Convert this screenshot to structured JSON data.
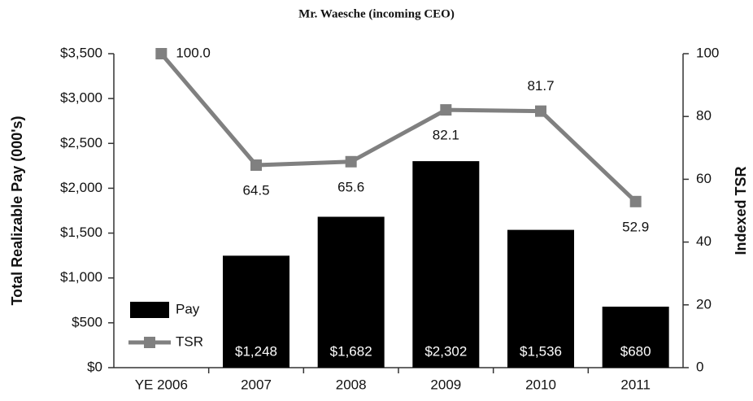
{
  "chart_data": {
    "type": "bar_line",
    "title": "Mr. Waesche (incoming CEO)",
    "y_label": "Total Realizable Pay (000's)",
    "y2_label": "Indexed TSR",
    "categories": [
      "YE 2006",
      "2007",
      "2008",
      "2009",
      "2010",
      "2011"
    ],
    "series": [
      {
        "name": "Pay",
        "type": "bar",
        "color": "#000000",
        "values": [
          null,
          1248,
          1682,
          2302,
          1536,
          680
        ],
        "value_labels": [
          null,
          "$1,248",
          "$1,682",
          "$2,302",
          "$1,536",
          "$680"
        ]
      },
      {
        "name": "TSR",
        "type": "line",
        "axis": "y2",
        "color": "#808080",
        "values": [
          100.0,
          64.5,
          65.6,
          82.1,
          81.7,
          52.9
        ],
        "value_labels": [
          "100.0",
          "64.5",
          "65.6",
          "82.1",
          "81.7",
          "52.9"
        ]
      }
    ],
    "ylim": [
      0,
      3500
    ],
    "yticks": [
      {
        "value": 0,
        "label": "$0"
      },
      {
        "value": 500,
        "label": "$500"
      },
      {
        "value": 1000,
        "label": "$1,000"
      },
      {
        "value": 1500,
        "label": "$1,500"
      },
      {
        "value": 2000,
        "label": "$2,000"
      },
      {
        "value": 2500,
        "label": "$2,500"
      },
      {
        "value": 3000,
        "label": "$3,000"
      },
      {
        "value": 3500,
        "label": "$3,500"
      }
    ],
    "y2lim": [
      0,
      100
    ],
    "y2ticks": [
      0,
      20,
      40,
      60,
      80,
      100
    ],
    "legend": "lower left"
  }
}
